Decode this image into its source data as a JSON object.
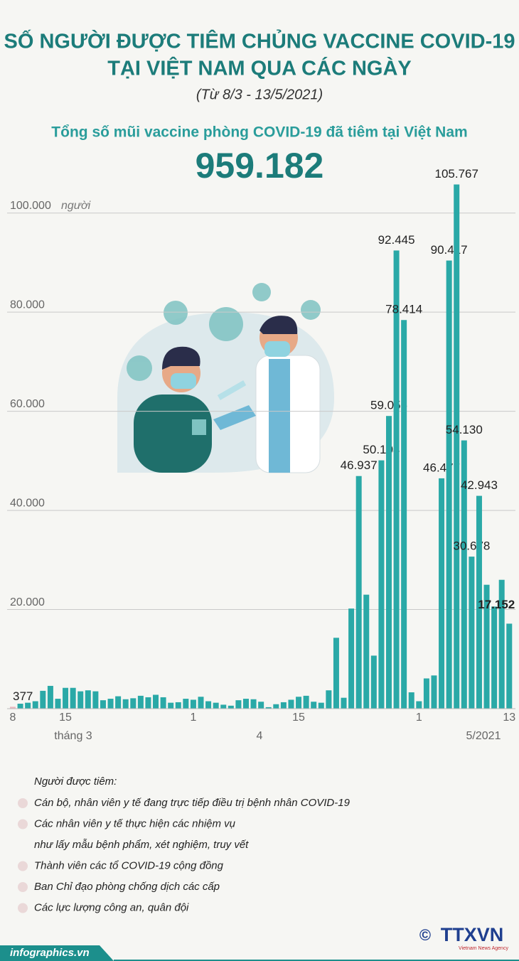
{
  "title": [
    "SỐ NGƯỜI ĐƯỢC TIÊM CHỦNG VACCINE COVID-19",
    "TẠI VIỆT NAM QUA CÁC NGÀY"
  ],
  "subtitle": "(Từ 8/3 -  13/5/2021)",
  "headline": "Tổng số mũi vaccine phòng COVID-19 đã tiêm tại Việt Nam",
  "headline_total": "959.182",
  "chart_data": {
    "type": "bar",
    "color": "#2aa9a7",
    "grid": true,
    "ylim": [
      0,
      110000
    ],
    "yticks": [
      {
        "value": 20000,
        "label": "20.000"
      },
      {
        "value": 40000,
        "label": "40.000"
      },
      {
        "value": 60000,
        "label": "60.000"
      },
      {
        "value": 80000,
        "label": "80.000"
      },
      {
        "value": 100000,
        "label": "100.000"
      }
    ],
    "y_unit": "người",
    "categories": [
      "8",
      null,
      null,
      null,
      null,
      null,
      null,
      "15",
      null,
      null,
      null,
      null,
      null,
      null,
      null,
      null,
      null,
      null,
      null,
      null,
      null,
      null,
      null,
      null,
      "1",
      null,
      null,
      null,
      null,
      null,
      null,
      null,
      null,
      null,
      null,
      null,
      null,
      null,
      "15",
      null,
      null,
      null,
      null,
      null,
      null,
      null,
      null,
      null,
      null,
      null,
      null,
      null,
      null,
      null,
      "1",
      null,
      null,
      null,
      null,
      null,
      null,
      null,
      null,
      null,
      null,
      null,
      "13"
    ],
    "month_labels": [
      "tháng 3",
      "4",
      "5/2021"
    ],
    "values": [
      377,
      1000,
      1200,
      1500,
      3600,
      4600,
      2000,
      4200,
      4200,
      3500,
      3700,
      3500,
      1700,
      2000,
      2500,
      1900,
      2100,
      2600,
      2300,
      2800,
      2300,
      1200,
      1300,
      2000,
      1800,
      2400,
      1500,
      1200,
      800,
      600,
      1700,
      2000,
      1900,
      1400,
      300,
      900,
      1300,
      1800,
      2400,
      2600,
      1400,
      1200,
      3700,
      14300,
      2200,
      20200,
      46937,
      23000,
      10700,
      50104,
      59056,
      92445,
      78414,
      3300,
      1500,
      6100,
      6700,
      46477,
      90417,
      105767,
      54130,
      30678,
      42943,
      25000,
      20600,
      26000,
      17152
    ],
    "value_labels": [
      "377",
      null,
      null,
      null,
      null,
      null,
      null,
      null,
      null,
      null,
      null,
      null,
      null,
      null,
      null,
      null,
      null,
      null,
      null,
      null,
      null,
      null,
      null,
      null,
      null,
      null,
      null,
      null,
      null,
      null,
      null,
      null,
      null,
      null,
      null,
      null,
      null,
      null,
      null,
      null,
      null,
      null,
      null,
      null,
      null,
      null,
      "46.937",
      null,
      null,
      "50.104",
      "59.056",
      "92.445",
      "78.414",
      null,
      null,
      null,
      null,
      "46.477",
      "90.417",
      "105.767",
      "54.130",
      "30.678",
      "42.943",
      null,
      null,
      null,
      "17.152"
    ]
  },
  "legend": {
    "title": "Người được tiêm:",
    "items": [
      [
        "Cán bộ, nhân viên y tế đang trực tiếp điều trị bệnh nhân COVID-19"
      ],
      [
        "Các nhân viên y tế thực hiện các nhiệm vụ",
        "như lấy mẫu bệnh phẩm, xét nghiệm, truy vết"
      ],
      [
        "Thành viên các tổ COVID-19 cộng đồng"
      ],
      [
        "Ban Chỉ đạo phòng chống dịch các cấp"
      ],
      [
        "Các lực lượng công an, quân đội"
      ]
    ]
  },
  "footer": {
    "site": "infographics.vn",
    "copyright": "©",
    "agency": "TTXVN",
    "agency_sub": "Vietnam News Agency"
  }
}
